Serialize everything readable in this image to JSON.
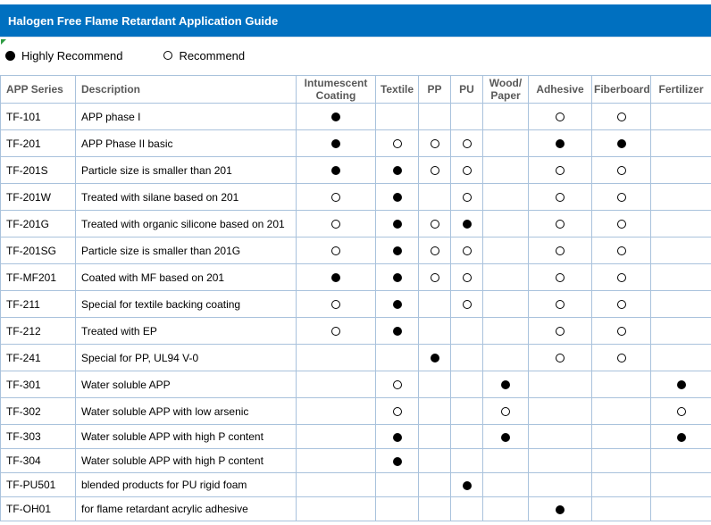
{
  "title": "Halogen Free Flame Retardant Application Guide",
  "legend": {
    "highly_label": "Highly Recommend",
    "recommend_label": "Recommend"
  },
  "colors": {
    "title_bar_blue": "#0070C0",
    "grid_line_blue": "#A9C2DC",
    "header_text_gray": "#595959",
    "corner_marker_green": "#2E9B42",
    "mark_black": "#000000"
  },
  "icons": {
    "filled_circle": "highly-recommend filled black circle",
    "open_circle": "recommend open circle"
  },
  "table": {
    "columns": [
      "APP Series",
      "Description",
      "Intumescent Coating",
      "Textile",
      "PP",
      "PU",
      "Wood/Paper",
      "Adhesive",
      "Fiberboard",
      "Fertilizer"
    ],
    "mark_legend": {
      "H": "Highly Recommend",
      "R": "Recommend",
      "": "none"
    },
    "rows": [
      {
        "series": "TF-101",
        "description": "APP phase I",
        "marks": [
          "H",
          "",
          "",
          "",
          "",
          "R",
          "R",
          ""
        ]
      },
      {
        "series": "TF-201",
        "description": "APP Phase II basic",
        "marks": [
          "H",
          "R",
          "R",
          "R",
          "",
          "H",
          "H",
          ""
        ]
      },
      {
        "series": "TF-201S",
        "description": "Particle size is smaller than 201",
        "marks": [
          "H",
          "H",
          "R",
          "R",
          "",
          "R",
          "R",
          ""
        ]
      },
      {
        "series": "TF-201W",
        "description": "Treated with silane based on 201",
        "marks": [
          "R",
          "H",
          "",
          "R",
          "",
          "R",
          "R",
          ""
        ]
      },
      {
        "series": "TF-201G",
        "description": "Treated with organic silicone based on 201",
        "marks": [
          "R",
          "H",
          "R",
          "H",
          "",
          "R",
          "R",
          ""
        ]
      },
      {
        "series": "TF-201SG",
        "description": "Particle size is smaller than 201G",
        "marks": [
          "R",
          "H",
          "R",
          "R",
          "",
          "R",
          "R",
          ""
        ]
      },
      {
        "series": "TF-MF201",
        "description": "Coated with MF based on 201",
        "marks": [
          "H",
          "H",
          "R",
          "R",
          "",
          "R",
          "R",
          ""
        ]
      },
      {
        "series": "TF-211",
        "description": "Special for textile backing coating",
        "marks": [
          "R",
          "H",
          "",
          "R",
          "",
          "R",
          "R",
          ""
        ]
      },
      {
        "series": "TF-212",
        "description": "Treated with EP",
        "marks": [
          "R",
          "H",
          "",
          "",
          "",
          "R",
          "R",
          ""
        ]
      },
      {
        "series": "TF-241",
        "description": "Special for PP, UL94 V-0",
        "marks": [
          "",
          "",
          "H",
          "",
          "",
          "R",
          "R",
          ""
        ]
      },
      {
        "series": "TF-301",
        "description": "Water soluble APP",
        "marks": [
          "",
          "R",
          "",
          "",
          "H",
          "",
          "",
          "H"
        ]
      },
      {
        "series": "TF-302",
        "description": "Water soluble APP with low arsenic",
        "marks": [
          "",
          "R",
          "",
          "",
          "R",
          "",
          "",
          "R"
        ]
      },
      {
        "series": "TF-303",
        "description": "Water soluble APP with high P content",
        "marks": [
          "",
          "H",
          "",
          "",
          "H",
          "",
          "",
          "H"
        ]
      },
      {
        "series": "TF-304",
        "description": "Water soluble APP with high P content",
        "marks": [
          "",
          "H",
          "",
          "",
          "",
          "",
          "",
          ""
        ]
      },
      {
        "series": "TF-PU501",
        "description": "blended products for PU rigid foam",
        "marks": [
          "",
          "",
          "",
          "H",
          "",
          "",
          "",
          ""
        ]
      },
      {
        "series": "TF-OH01",
        "description": "for flame retardant acrylic adhesive",
        "marks": [
          "",
          "",
          "",
          "",
          "",
          "H",
          "",
          ""
        ]
      }
    ]
  }
}
